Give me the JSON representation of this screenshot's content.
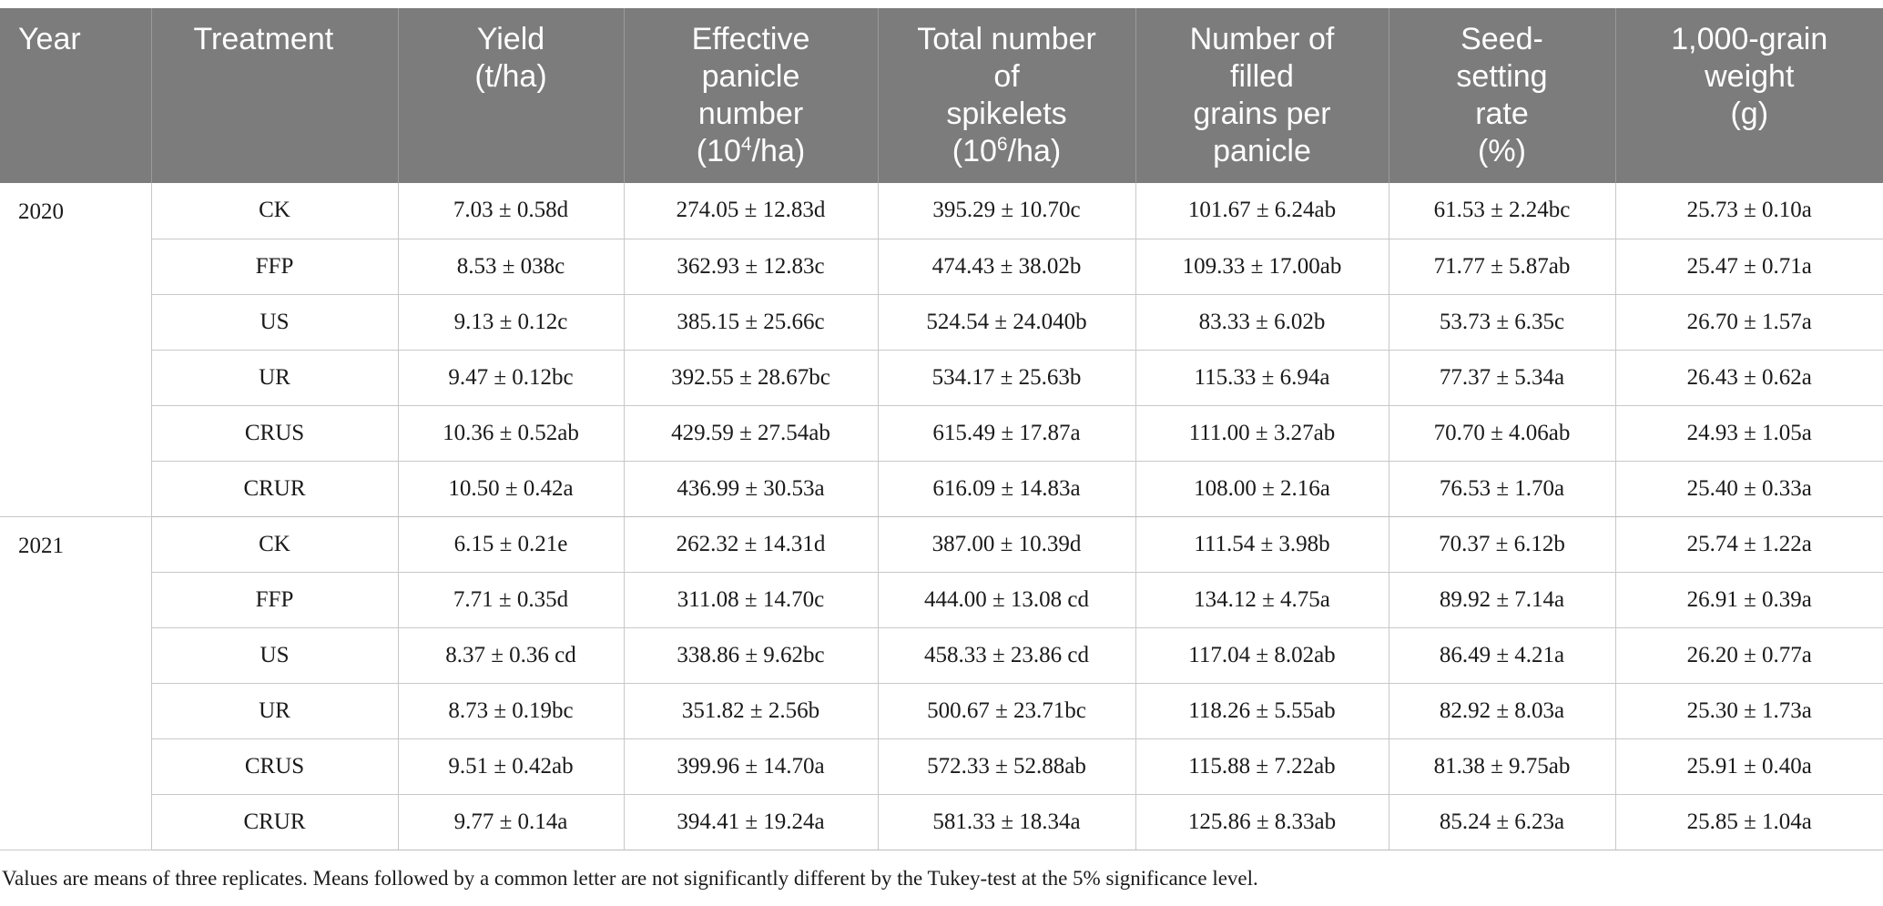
{
  "table": {
    "headers": [
      [
        "Year"
      ],
      [
        "Treatment"
      ],
      [
        "Yield",
        "(t/ha)"
      ],
      [
        "Effective",
        "panicle",
        "number",
        "(10⁴/ha)"
      ],
      [
        "Total number",
        "of",
        "spikelets",
        "(10⁶/ha)"
      ],
      [
        "Number of",
        "filled",
        "grains per",
        "panicle"
      ],
      [
        "Seed-",
        "setting",
        "rate",
        "(%)"
      ],
      [
        "1,000-grain",
        "weight",
        "(g)"
      ]
    ],
    "groups": [
      {
        "year": "2020",
        "rows": [
          [
            "CK",
            "7.03 ± 0.58d",
            "274.05 ± 12.83d",
            "395.29 ± 10.70c",
            "101.67 ± 6.24ab",
            "61.53 ± 2.24bc",
            "25.73 ± 0.10a"
          ],
          [
            "FFP",
            "8.53 ± 038c",
            "362.93 ± 12.83c",
            "474.43 ± 38.02b",
            "109.33 ± 17.00ab",
            "71.77 ± 5.87ab",
            "25.47 ± 0.71a"
          ],
          [
            "US",
            "9.13 ± 0.12c",
            "385.15 ± 25.66c",
            "524.54 ± 24.040b",
            "83.33 ± 6.02b",
            "53.73 ± 6.35c",
            "26.70 ± 1.57a"
          ],
          [
            "UR",
            "9.47 ± 0.12bc",
            "392.55 ± 28.67bc",
            "534.17 ± 25.63b",
            "115.33 ± 6.94a",
            "77.37 ± 5.34a",
            "26.43 ± 0.62a"
          ],
          [
            "CRUS",
            "10.36 ± 0.52ab",
            "429.59 ± 27.54ab",
            "615.49 ± 17.87a",
            "111.00 ± 3.27ab",
            "70.70 ± 4.06ab",
            "24.93 ± 1.05a"
          ],
          [
            "CRUR",
            "10.50 ± 0.42a",
            "436.99 ± 30.53a",
            "616.09 ± 14.83a",
            "108.00 ± 2.16a",
            "76.53 ± 1.70a",
            "25.40 ± 0.33a"
          ]
        ]
      },
      {
        "year": "2021",
        "rows": [
          [
            "CK",
            "6.15 ± 0.21e",
            "262.32 ± 14.31d",
            "387.00 ± 10.39d",
            "111.54 ± 3.98b",
            "70.37 ± 6.12b",
            "25.74 ± 1.22a"
          ],
          [
            "FFP",
            "7.71 ± 0.35d",
            "311.08 ± 14.70c",
            "444.00 ± 13.08 cd",
            "134.12 ± 4.75a",
            "89.92 ± 7.14a",
            "26.91 ± 0.39a"
          ],
          [
            "US",
            "8.37 ± 0.36 cd",
            "338.86 ± 9.62bc",
            "458.33 ± 23.86 cd",
            "117.04 ± 8.02ab",
            "86.49 ± 4.21a",
            "26.20 ± 0.77a"
          ],
          [
            "UR",
            "8.73 ± 0.19bc",
            "351.82 ± 2.56b",
            "500.67 ± 23.71bc",
            "118.26 ± 5.55ab",
            "82.92 ± 8.03a",
            "25.30 ± 1.73a"
          ],
          [
            "CRUS",
            "9.51 ± 0.42ab",
            "399.96 ± 14.70a",
            "572.33 ± 52.88ab",
            "115.88 ± 7.22ab",
            "81.38 ± 9.75ab",
            "25.91 ± 0.40a"
          ],
          [
            "CRUR",
            "9.77 ± 0.14a",
            "394.41 ± 19.24a",
            "581.33 ± 18.34a",
            "125.86 ± 8.33ab",
            "85.24 ± 6.23a",
            "25.85 ± 1.04a"
          ]
        ]
      }
    ],
    "footnote": "Values are means of three replicates. Means followed by a common letter are not significantly different by the Tukey-test at the 5% significance level.",
    "colors": {
      "header_bg": "#7b7c7b",
      "header_text": "#ffffff",
      "grid": "#c8c8c8"
    }
  }
}
